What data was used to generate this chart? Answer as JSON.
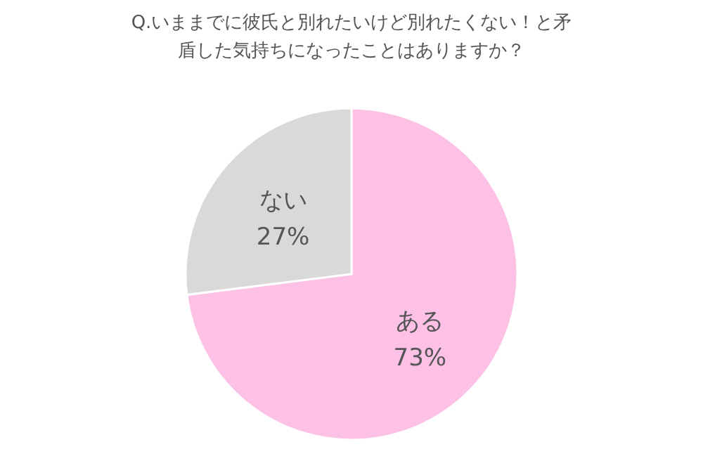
{
  "chart_data": {
    "type": "pie",
    "title": "Q.いままでに彼氏と別れたいけど別れたくない！と矛盾した気持ちになったことはありますか？",
    "categories": [
      "ある",
      "ない"
    ],
    "values": [
      73,
      27
    ],
    "value_labels": [
      "73%",
      "27%"
    ],
    "colors": [
      "#fdc1e6",
      "#d9d9d9"
    ]
  }
}
